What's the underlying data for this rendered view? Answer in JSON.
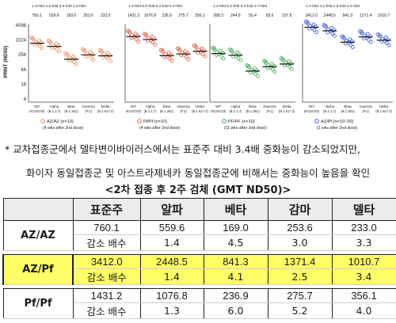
{
  "figure": {
    "y_axis_label": "PRNT (ND50)",
    "y_ticks": [
      "4096",
      "1024",
      "256",
      "64",
      "16",
      "4"
    ],
    "panels": [
      {
        "values": [
          "760.1",
          "559.6",
          "169.0",
          "253.6",
          "233.0"
        ],
        "fold": "1.4-fold 4.5-fold 3.0-fold 3.3-fold",
        "categories": [
          "WT (KCDC03)",
          "Alpha (B.1.1.7)",
          "Beta (B.1.351)",
          "Gamma (P.1)",
          "Delta (B.1.617.2)"
        ],
        "legend": "AZ/AZ (n=10)",
        "legend_sub": "(4 wks after 2nd dose)",
        "color": "#e08a5a"
      },
      {
        "values": [
          "1431.2",
          "1076.8",
          "236.9",
          "275.7",
          "356.1"
        ],
        "fold": "1.3-fold 6.0-fold 5.2-fold 4.0-fold",
        "categories": [
          "WT (KCDC03)",
          "Alpha (B.1.1.7)",
          "Beta (B.1.351)",
          "Gamma (P.1)",
          "Delta (B.1.617.2)"
        ],
        "legend": "Pf/Pf (n=10)",
        "legend_sub": "(4 wks after 2nd dose)",
        "color": "#d9553a"
      },
      {
        "values": [
          "288.3",
          "244.6",
          "55.4",
          "83.6",
          "107.5"
        ],
        "fold": "1.2-fold 5.2-fold 3.4-fold 2.7-fold",
        "categories": [
          "WT (KCDC03)",
          "Alpha (B.1.1.7)",
          "Beta (B.1.351)",
          "Gamma (P.1)",
          "Delta (B.1.617.2)"
        ],
        "legend": "PF/PF (n=10)",
        "legend_sub": "(11 wks after 2nd dose)",
        "color": "#3aa04a"
      },
      {
        "values": [
          "3412.0",
          "2448.5",
          "841.3",
          "1371.4",
          "1010.7"
        ],
        "fold": "1.4-fold 4.1-fold 2.5-fold 3.4-fold",
        "categories": [
          "WT (KCDC03)",
          "Alpha (B.1.1.7)",
          "Beta (B.1.351)",
          "Gamma (P.1)",
          "Delta (B.1.617.2)"
        ],
        "legend": "AZ/Pf (n=10~20)",
        "legend_sub": "(2 wks after 2nd dose)",
        "color": "#2f4fd6"
      }
    ]
  },
  "note_line1": "*  교차접종군에서 델타변이바이러스에서는 표준주 대비 3.4배 중화능이 감소되었지만,",
  "note_line2": "화이자 동일접종군 및 아스트라제네카 동일접종군에 비해서는 중화능이 높음을 확인",
  "table_title": "<2차 접종 후 2주 검체 (GMT ND50)>",
  "table": {
    "headers": [
      "",
      "표준주",
      "알파",
      "베타",
      "감마",
      "델타"
    ],
    "groups": [
      {
        "name": "AZ/AZ",
        "values": [
          "760.1",
          "559.6",
          "169.0",
          "253.6",
          "233.0"
        ],
        "fold_label": "감소 배수",
        "folds": [
          "1.4",
          "4.5",
          "3.0",
          "3.3"
        ]
      },
      {
        "name": "AZ/Pf",
        "values": [
          "3412.0",
          "2448.5",
          "841.3",
          "1371.4",
          "1010.7"
        ],
        "fold_label": "감소 배수",
        "folds": [
          "1.4",
          "4.1",
          "2.5",
          "3.4"
        ]
      },
      {
        "name": "Pf/Pf",
        "values": [
          "1431.2",
          "1076.8",
          "236.9",
          "275.7",
          "356.1"
        ],
        "fold_label": "감소 배수",
        "folds": [
          "1.3",
          "6.0",
          "5.2",
          "4.0"
        ]
      }
    ],
    "highlight_color": "#ffff66"
  }
}
